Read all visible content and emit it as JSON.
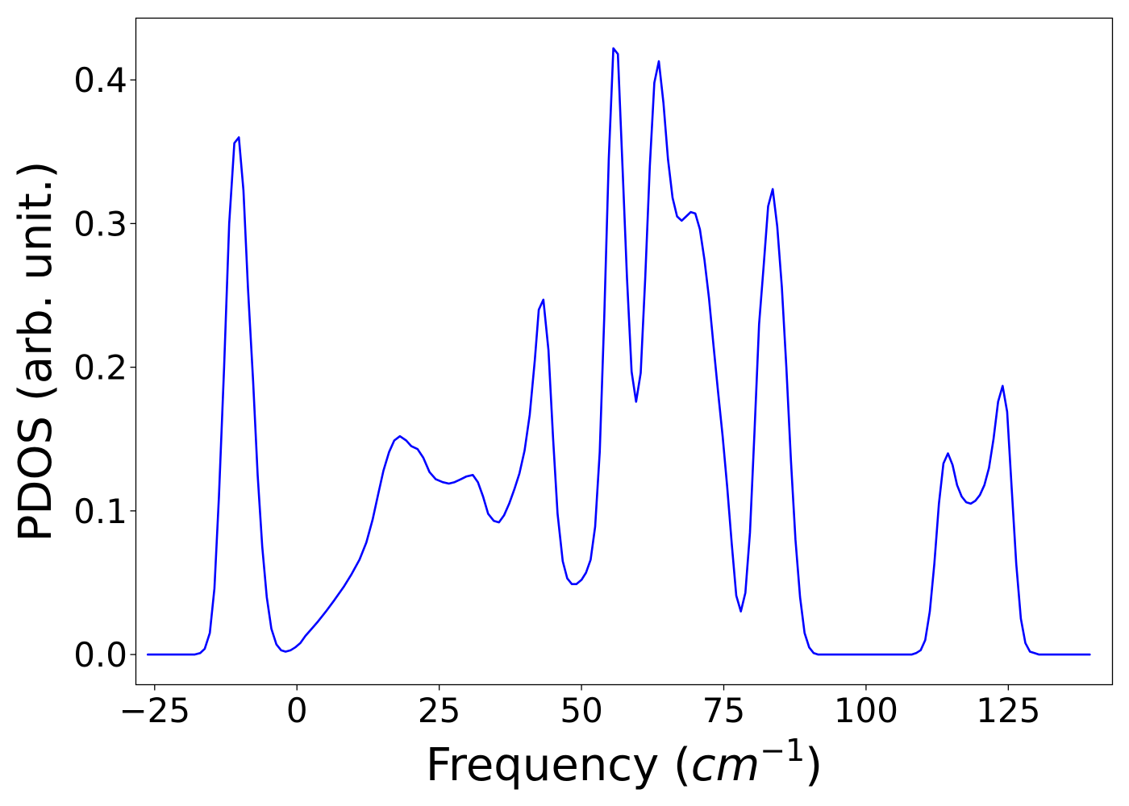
{
  "chart_data": {
    "type": "line",
    "xlabel_main": "Frequency (",
    "xlabel_math": "cm",
    "xlabel_sup": "−1",
    "xlabel_end": ")",
    "ylabel": "PDOS (arb. unit.)",
    "xlim": [
      -28.3,
      143.3
    ],
    "ylim": [
      -0.021,
      0.443
    ],
    "xticks": [
      -25,
      0,
      25,
      50,
      75,
      100,
      125
    ],
    "xtick_labels": [
      "−25",
      "0",
      "25",
      "50",
      "75",
      "100",
      "125"
    ],
    "yticks": [
      0.0,
      0.1,
      0.2,
      0.3,
      0.4
    ],
    "ytick_labels": [
      "0.0",
      "0.1",
      "0.2",
      "0.3",
      "0.4"
    ],
    "grid": false,
    "line_color": "#0000ff",
    "series": [
      {
        "x": [
          -26.2,
          -18,
          -17,
          -16.2,
          -15.3,
          -14.5,
          -13.7,
          -12.8,
          -11.9,
          -11,
          -10.2,
          -9.4,
          -8.6,
          -7.7,
          -6.9,
          -6.1,
          -5.3,
          -4.5,
          -3.6,
          -2.8,
          -2,
          -1.1,
          -0.3,
          0.6,
          1.5,
          2.6,
          3.7,
          5.1,
          6.6,
          8.2,
          9.6,
          11,
          12.2,
          13.3,
          14.3,
          15.2,
          16.2,
          17.1,
          18.1,
          19.2,
          20.1,
          21.2,
          22.2,
          23.3,
          24.4,
          25.6,
          26.7,
          27.7,
          28.8,
          29.8,
          30.9,
          31.8,
          32.7,
          33.6,
          34.6,
          35.5,
          36.4,
          37.3,
          38.2,
          39.1,
          40,
          40.9,
          41.8,
          42.5,
          43.3,
          44.2,
          45,
          45.8,
          46.7,
          47.5,
          48.3,
          49.1,
          50,
          50.8,
          51.6,
          52.4,
          53.2,
          54,
          54.8,
          55.6,
          56.4,
          57.2,
          58,
          58.8,
          59.6,
          60.4,
          61.2,
          62,
          62.8,
          63.6,
          64.4,
          65.2,
          66,
          66.8,
          67.6,
          68.4,
          69.2,
          70,
          70.8,
          71.6,
          72.4,
          73.2,
          74,
          74.8,
          75.6,
          76.4,
          77.2,
          78,
          78.8,
          79.6,
          80.4,
          81.2,
          82,
          82.8,
          83.6,
          84.4,
          85.2,
          86,
          86.8,
          87.6,
          88.4,
          89.2,
          90,
          90.8,
          91.6,
          93,
          95,
          100,
          105,
          108,
          108.8,
          109.6,
          110.4,
          111.2,
          112,
          112.8,
          113.6,
          114.4,
          115.2,
          116,
          116.8,
          117.6,
          118.4,
          119.2,
          120,
          120.8,
          121.6,
          122.4,
          123.2,
          124,
          124.8,
          125.6,
          126.4,
          127.2,
          128,
          128.8,
          129.6,
          130.4,
          131.2,
          139.3
        ],
        "y": [
          0.0,
          0.0,
          0.001,
          0.004,
          0.015,
          0.046,
          0.11,
          0.2,
          0.3,
          0.356,
          0.36,
          0.323,
          0.255,
          0.19,
          0.125,
          0.075,
          0.04,
          0.018,
          0.007,
          0.003,
          0.002,
          0.003,
          0.005,
          0.008,
          0.013,
          0.018,
          0.023,
          0.03,
          0.038,
          0.047,
          0.056,
          0.066,
          0.078,
          0.094,
          0.112,
          0.128,
          0.141,
          0.149,
          0.152,
          0.149,
          0.145,
          0.143,
          0.137,
          0.127,
          0.122,
          0.12,
          0.119,
          0.12,
          0.122,
          0.124,
          0.125,
          0.12,
          0.11,
          0.098,
          0.093,
          0.092,
          0.097,
          0.105,
          0.115,
          0.126,
          0.142,
          0.167,
          0.205,
          0.24,
          0.247,
          0.212,
          0.151,
          0.098,
          0.065,
          0.053,
          0.049,
          0.049,
          0.052,
          0.057,
          0.066,
          0.089,
          0.141,
          0.235,
          0.345,
          0.422,
          0.418,
          0.34,
          0.262,
          0.197,
          0.176,
          0.196,
          0.262,
          0.34,
          0.398,
          0.413,
          0.384,
          0.345,
          0.318,
          0.305,
          0.302,
          0.305,
          0.308,
          0.307,
          0.296,
          0.275,
          0.248,
          0.215,
          0.183,
          0.152,
          0.117,
          0.077,
          0.041,
          0.03,
          0.043,
          0.085,
          0.155,
          0.23,
          0.27,
          0.312,
          0.324,
          0.298,
          0.256,
          0.2,
          0.135,
          0.08,
          0.04,
          0.015,
          0.005,
          0.001,
          0.0,
          0.0,
          0.0,
          0.0,
          0.0,
          0.0,
          0.001,
          0.003,
          0.01,
          0.03,
          0.063,
          0.105,
          0.133,
          0.14,
          0.132,
          0.118,
          0.11,
          0.106,
          0.105,
          0.107,
          0.111,
          0.118,
          0.13,
          0.15,
          0.176,
          0.187,
          0.169,
          0.115,
          0.063,
          0.025,
          0.008,
          0.002,
          0.001,
          0.0,
          0.0,
          0.0
        ]
      }
    ]
  }
}
